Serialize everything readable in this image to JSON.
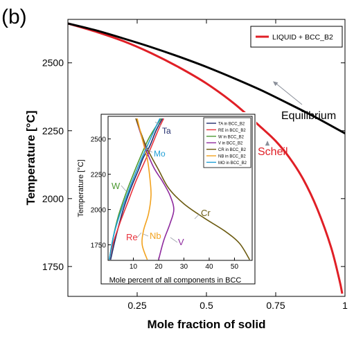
{
  "panel_label": "(b)",
  "colors": {
    "equilibrium": "#000000",
    "scheil": "#e01f26",
    "ta": "#1f2a6b",
    "re": "#e8323c",
    "w": "#4e9a33",
    "v": "#8e2a9e",
    "cr": "#6b5a10",
    "nb": "#f2a21e",
    "mo": "#1f9fd6",
    "annotation_arrow": "#8a8f99"
  },
  "chart_data": [
    {
      "type": "line",
      "xlabel": "Mole fraction of solid",
      "ylabel": "Temperature [°C]",
      "xlim": [
        0,
        1
      ],
      "ylim": [
        1640,
        2660
      ],
      "x_ticks": [
        0.25,
        0.5,
        0.75,
        1
      ],
      "x_tick_labels": [
        "0.25",
        "0.5",
        "0.75",
        "1"
      ],
      "y_ticks": [
        1750,
        2000,
        2250,
        2500
      ],
      "y_tick_labels": [
        "1750",
        "2000",
        "2250",
        "2500"
      ],
      "legend": {
        "position": "top-right",
        "entries": [
          "LIQUID + BCC_B2"
        ]
      },
      "series": [
        {
          "name": "LIQUID + BCC_B2",
          "color_key": "scheil",
          "x": [
            0,
            0.1,
            0.2,
            0.3,
            0.4,
            0.5,
            0.6,
            0.7,
            0.75,
            0.8,
            0.85,
            0.9,
            0.95,
            0.98,
            0.99
          ],
          "y": [
            2645,
            2615,
            2580,
            2536,
            2484,
            2424,
            2350,
            2260,
            2212,
            2150,
            2070,
            1962,
            1820,
            1700,
            1650
          ]
        },
        {
          "color_key": "equilibrium",
          "x": [
            0,
            0.1,
            0.2,
            0.3,
            0.4,
            0.5,
            0.6,
            0.7,
            0.8,
            0.9,
            1.0
          ],
          "y": [
            2645,
            2620,
            2590,
            2558,
            2523,
            2485,
            2443,
            2398,
            2348,
            2296,
            2240
          ]
        }
      ],
      "annotations": [
        {
          "text": "Equilibrium",
          "color_key": "equilibrium",
          "points_to": [
            0.74,
            2432
          ]
        },
        {
          "text": "Scheil",
          "color_key": "scheil",
          "points_to": [
            0.72,
            2213
          ]
        }
      ]
    },
    {
      "type": "line",
      "xlabel": "Mole percent of all components in BCC",
      "ylabel": "Temperature [°C]",
      "xlim": [
        0,
        57
      ],
      "ylim": [
        1640,
        2660
      ],
      "x_ticks": [
        10,
        20,
        30,
        40,
        50
      ],
      "x_tick_labels": [
        "10",
        "20",
        "30",
        "40",
        "50"
      ],
      "y_ticks": [
        1750,
        2000,
        2250,
        2500
      ],
      "y_tick_labels": [
        "1750",
        "2000",
        "2250",
        "2500"
      ],
      "legend": {
        "position": "top-right",
        "entries": [
          "TA in BCC_B2",
          "RE in BCC_B2",
          "W in BCC_B2",
          "V in BCC_B2",
          "CR in BCC_B2",
          "NB in BCC_B2",
          "MO in BCC_B2"
        ]
      },
      "series": [
        {
          "name": "TA in BCC_B2",
          "color_key": "ta",
          "label": "Ta",
          "x": [
            1,
            3,
            6,
            9,
            12,
            14,
            16.5,
            19,
            21.5
          ],
          "y": [
            1645,
            1800,
            2000,
            2150,
            2280,
            2370,
            2450,
            2560,
            2645
          ]
        },
        {
          "name": "RE in BCC_B2",
          "color_key": "re",
          "label": "Re",
          "x": [
            0.5,
            2,
            5,
            8,
            11,
            14,
            17,
            20,
            22
          ],
          "y": [
            1645,
            1760,
            1920,
            2060,
            2200,
            2320,
            2440,
            2570,
            2645
          ]
        },
        {
          "name": "W in BCC_B2",
          "color_key": "w",
          "label": "W",
          "x": [
            0.5,
            2,
            4,
            7,
            10,
            13,
            16,
            19,
            21
          ],
          "y": [
            1645,
            1800,
            1950,
            2110,
            2250,
            2380,
            2500,
            2590,
            2645
          ]
        },
        {
          "name": "V in BCC_B2",
          "color_key": "v",
          "label": "V",
          "x": [
            20,
            22,
            24.5,
            26,
            24.5,
            21.5,
            18,
            14.5,
            11
          ],
          "y": [
            1645,
            1780,
            1900,
            2000,
            2100,
            2200,
            2300,
            2450,
            2645
          ]
        },
        {
          "name": "CR in BCC_B2",
          "color_key": "cr",
          "label": "Cr",
          "x": [
            56,
            52,
            46,
            38,
            30,
            24,
            20,
            15,
            11
          ],
          "y": [
            1645,
            1760,
            1850,
            1940,
            2040,
            2150,
            2280,
            2450,
            2645
          ]
        },
        {
          "name": "NB in BCC_B2",
          "color_key": "nb",
          "label": "Nb",
          "x": [
            15.5,
            13.5,
            14,
            16,
            17,
            16.5,
            15.5,
            13.5,
            11.5
          ],
          "y": [
            1645,
            1750,
            1850,
            1970,
            2100,
            2230,
            2360,
            2500,
            2645
          ]
        },
        {
          "name": "MO in BCC_B2",
          "color_key": "mo",
          "label": "Mo",
          "x": [
            0.5,
            2,
            4,
            7,
            10,
            13,
            16,
            18.5,
            20.5
          ],
          "y": [
            1645,
            1800,
            1930,
            2080,
            2220,
            2350,
            2470,
            2570,
            2645
          ]
        }
      ]
    }
  ]
}
